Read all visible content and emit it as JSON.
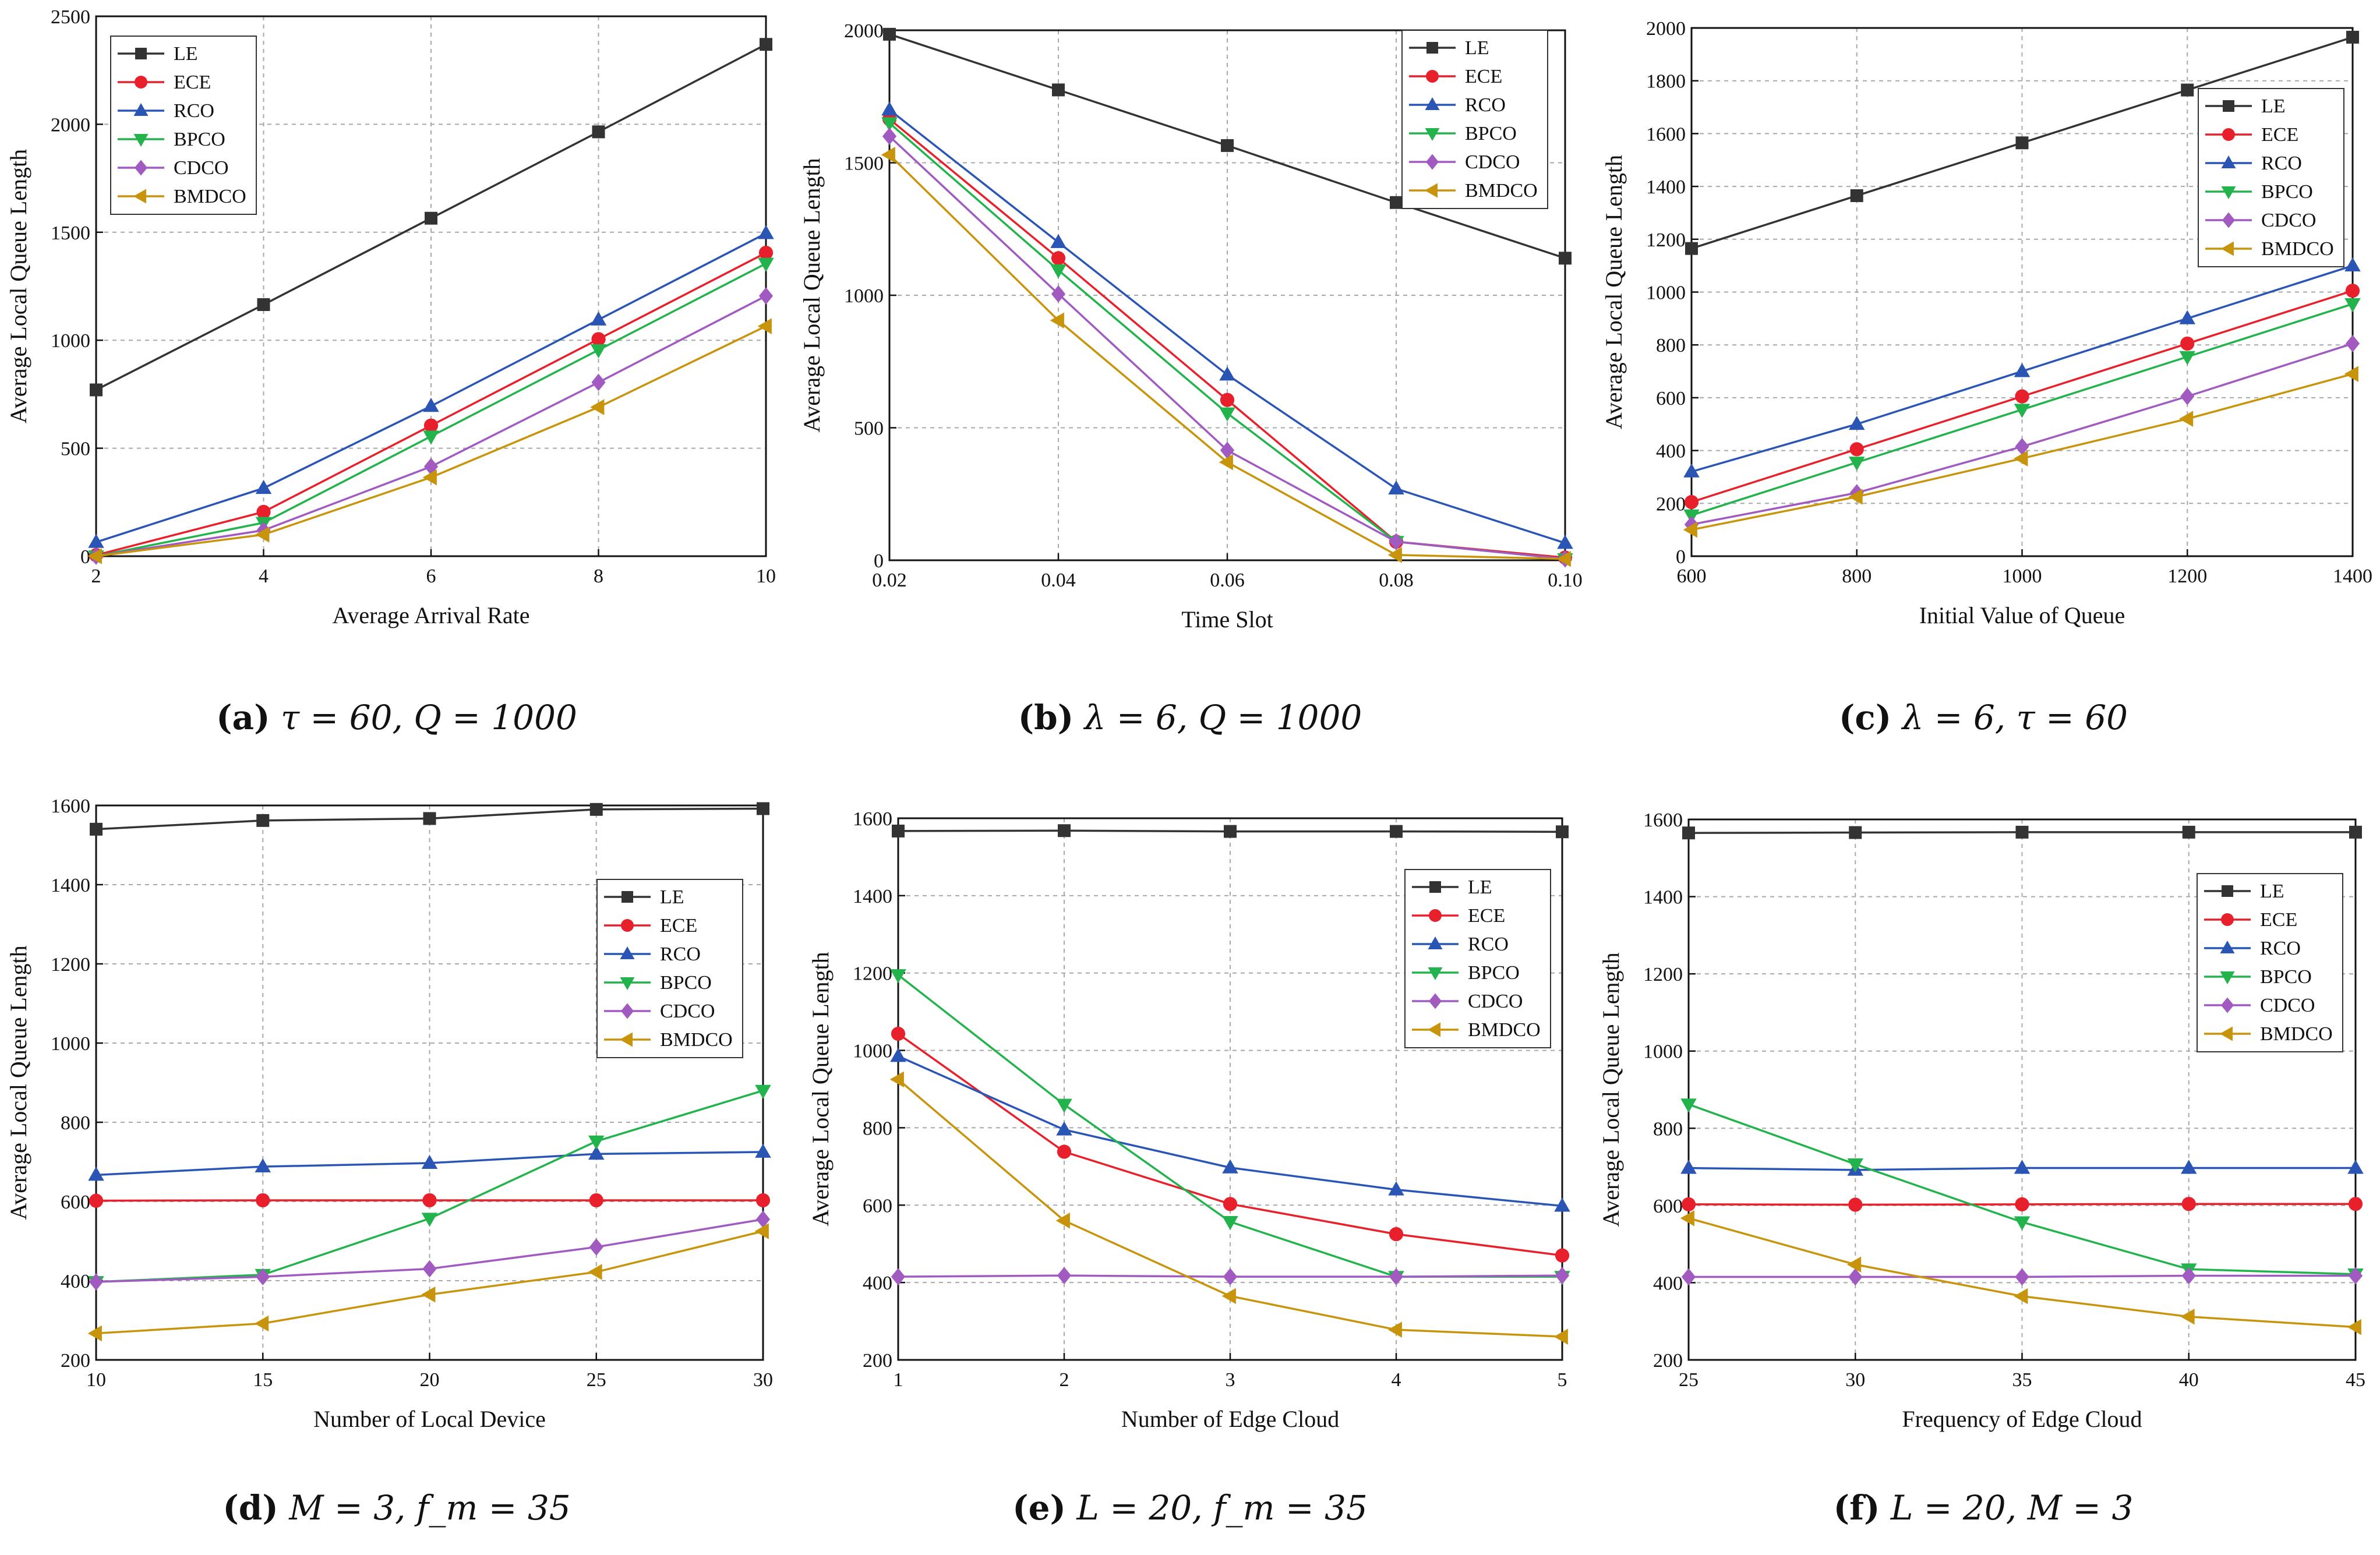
{
  "series_colors": {
    "LE": "#333333",
    "ECE": "#e8202b",
    "RCO": "#2a55b4",
    "BPCO": "#22b34c",
    "CDCO": "#a05ac0",
    "BMDCO": "#c8940c"
  },
  "series_markers": {
    "LE": "square-icon",
    "ECE": "circle-icon",
    "RCO": "triangle-up-icon",
    "BPCO": "triangle-down-icon",
    "CDCO": "diamond-icon",
    "BMDCO": "triangle-left-icon"
  },
  "chart_data": [
    {
      "type": "line",
      "caption": {
        "tag": "(a)",
        "text": "τ = 60, Q = 1000"
      },
      "xlabel": "Average Arrival Rate",
      "ylabel": "Average Local Queue Length",
      "x": [
        2,
        4,
        6,
        8,
        10
      ],
      "xticks": [
        "2",
        "4",
        "6",
        "8",
        "10"
      ],
      "xlim": [
        2,
        10
      ],
      "ylim": [
        0,
        2500
      ],
      "yticks": [
        0,
        500,
        1000,
        1500,
        2000,
        2500
      ],
      "legend": "top-left",
      "series": [
        {
          "name": "LE",
          "values": [
            770,
            1165,
            1565,
            1965,
            2370
          ]
        },
        {
          "name": "ECE",
          "values": [
            5,
            205,
            605,
            1005,
            1405
          ]
        },
        {
          "name": "RCO",
          "values": [
            65,
            315,
            695,
            1095,
            1495
          ]
        },
        {
          "name": "BPCO",
          "values": [
            0,
            155,
            555,
            955,
            1355
          ]
        },
        {
          "name": "CDCO",
          "values": [
            0,
            120,
            415,
            805,
            1205
          ]
        },
        {
          "name": "BMDCO",
          "values": [
            0,
            100,
            365,
            690,
            1065
          ]
        }
      ]
    },
    {
      "type": "line",
      "caption": {
        "tag": "(b)",
        "text": "λ = 6, Q = 1000"
      },
      "xlabel": "Time Slot",
      "ylabel": "Average Local Queue Length",
      "x": [
        0.02,
        0.04,
        0.06,
        0.08,
        0.1
      ],
      "xticks": [
        "0.02",
        "0.04",
        "0.06",
        "0.08",
        "0.10"
      ],
      "xlim": [
        0.02,
        0.1
      ],
      "ylim": [
        0,
        2000
      ],
      "yticks": [
        0,
        500,
        1000,
        1500,
        2000
      ],
      "legend": "top-right",
      "series": [
        {
          "name": "LE",
          "values": [
            1985,
            1775,
            1565,
            1350,
            1140
          ]
        },
        {
          "name": "ECE",
          "values": [
            1665,
            1140,
            605,
            70,
            10
          ]
        },
        {
          "name": "RCO",
          "values": [
            1700,
            1200,
            700,
            270,
            65
          ]
        },
        {
          "name": "BPCO",
          "values": [
            1650,
            1095,
            555,
            70,
            5
          ]
        },
        {
          "name": "CDCO",
          "values": [
            1600,
            1005,
            415,
            70,
            5
          ]
        },
        {
          "name": "BMDCO",
          "values": [
            1530,
            905,
            370,
            20,
            5
          ]
        }
      ]
    },
    {
      "type": "line",
      "caption": {
        "tag": "(c)",
        "text": "λ = 6, τ = 60"
      },
      "xlabel": "Initial Value of Queue",
      "ylabel": "Average Local Queue Length",
      "x": [
        600,
        800,
        1000,
        1200,
        1400
      ],
      "xticks": [
        "600",
        "800",
        "1000",
        "1200",
        "1400"
      ],
      "xlim": [
        600,
        1400
      ],
      "ylim": [
        0,
        2000
      ],
      "yticks": [
        0,
        200,
        400,
        600,
        800,
        1000,
        1200,
        1400,
        1600,
        1800,
        2000
      ],
      "legend": "top-left",
      "series": [
        {
          "name": "LE",
          "values": [
            1165,
            1365,
            1565,
            1765,
            1965
          ]
        },
        {
          "name": "ECE",
          "values": [
            205,
            405,
            605,
            805,
            1005
          ]
        },
        {
          "name": "RCO",
          "values": [
            320,
            500,
            700,
            900,
            1100
          ]
        },
        {
          "name": "BPCO",
          "values": [
            155,
            355,
            555,
            755,
            955
          ]
        },
        {
          "name": "CDCO",
          "values": [
            120,
            240,
            415,
            605,
            805
          ]
        },
        {
          "name": "BMDCO",
          "values": [
            100,
            225,
            370,
            520,
            690
          ]
        }
      ]
    },
    {
      "type": "line",
      "caption": {
        "tag": "(d)",
        "text": "M = 3, f_m = 35"
      },
      "xlabel": "Number of Local Device",
      "ylabel": "Average Local Queue Length",
      "x": [
        10,
        15,
        20,
        25,
        30
      ],
      "xticks": [
        "10",
        "15",
        "20",
        "25",
        "30"
      ],
      "xlim": [
        10,
        30
      ],
      "ylim": [
        200,
        1600
      ],
      "yticks": [
        200,
        400,
        600,
        800,
        1000,
        1200,
        1400,
        1600
      ],
      "legend": "right",
      "series": [
        {
          "name": "LE",
          "values": [
            1540,
            1562,
            1567,
            1590,
            1592
          ]
        },
        {
          "name": "ECE",
          "values": [
            602,
            603,
            603,
            603,
            603
          ]
        },
        {
          "name": "RCO",
          "values": [
            667,
            688,
            697,
            720,
            725
          ]
        },
        {
          "name": "BPCO",
          "values": [
            397,
            415,
            557,
            752,
            880
          ]
        },
        {
          "name": "CDCO",
          "values": [
            397,
            410,
            430,
            485,
            555
          ]
        },
        {
          "name": "BMDCO",
          "values": [
            267,
            292,
            365,
            422,
            525
          ]
        }
      ]
    },
    {
      "type": "line",
      "caption": {
        "tag": "(e)",
        "text": "L = 20, f_m = 35"
      },
      "xlabel": "Number of Edge Cloud",
      "ylabel": "Average Local Queue Length",
      "x": [
        1,
        2,
        3,
        4,
        5
      ],
      "xticks": [
        "1",
        "2",
        "3",
        "4",
        "5"
      ],
      "xlim": [
        1,
        5
      ],
      "ylim": [
        200,
        1600
      ],
      "yticks": [
        200,
        400,
        600,
        800,
        1000,
        1200,
        1400,
        1600
      ],
      "legend": "top-right",
      "series": [
        {
          "name": "LE",
          "values": [
            1567,
            1568,
            1566,
            1566,
            1565
          ]
        },
        {
          "name": "ECE",
          "values": [
            1043,
            738,
            603,
            525,
            470
          ]
        },
        {
          "name": "RCO",
          "values": [
            985,
            795,
            697,
            640,
            598
          ]
        },
        {
          "name": "BPCO",
          "values": [
            1195,
            860,
            557,
            415,
            415
          ]
        },
        {
          "name": "CDCO",
          "values": [
            415,
            418,
            415,
            415,
            418
          ]
        },
        {
          "name": "BMDCO",
          "values": [
            925,
            560,
            365,
            278,
            260
          ]
        }
      ]
    },
    {
      "type": "line",
      "caption": {
        "tag": "(f)",
        "text": "L = 20, M = 3"
      },
      "xlabel": "Frequency of Edge Cloud",
      "ylabel": "Average Local Queue Length",
      "x": [
        25,
        30,
        35,
        40,
        45
      ],
      "xticks": [
        "25",
        "30",
        "35",
        "40",
        "45"
      ],
      "xlim": [
        25,
        45
      ],
      "ylim": [
        200,
        1600
      ],
      "yticks": [
        200,
        400,
        600,
        800,
        1000,
        1200,
        1400,
        1600
      ],
      "legend": "right",
      "series": [
        {
          "name": "LE",
          "values": [
            1565,
            1566,
            1567,
            1567,
            1567
          ]
        },
        {
          "name": "ECE",
          "values": [
            603,
            602,
            603,
            604,
            604
          ]
        },
        {
          "name": "RCO",
          "values": [
            697,
            692,
            697,
            697,
            697
          ]
        },
        {
          "name": "BPCO",
          "values": [
            862,
            707,
            557,
            435,
            422
          ]
        },
        {
          "name": "CDCO",
          "values": [
            415,
            415,
            415,
            418,
            418
          ]
        },
        {
          "name": "BMDCO",
          "values": [
            567,
            447,
            365,
            312,
            285
          ]
        }
      ]
    }
  ]
}
